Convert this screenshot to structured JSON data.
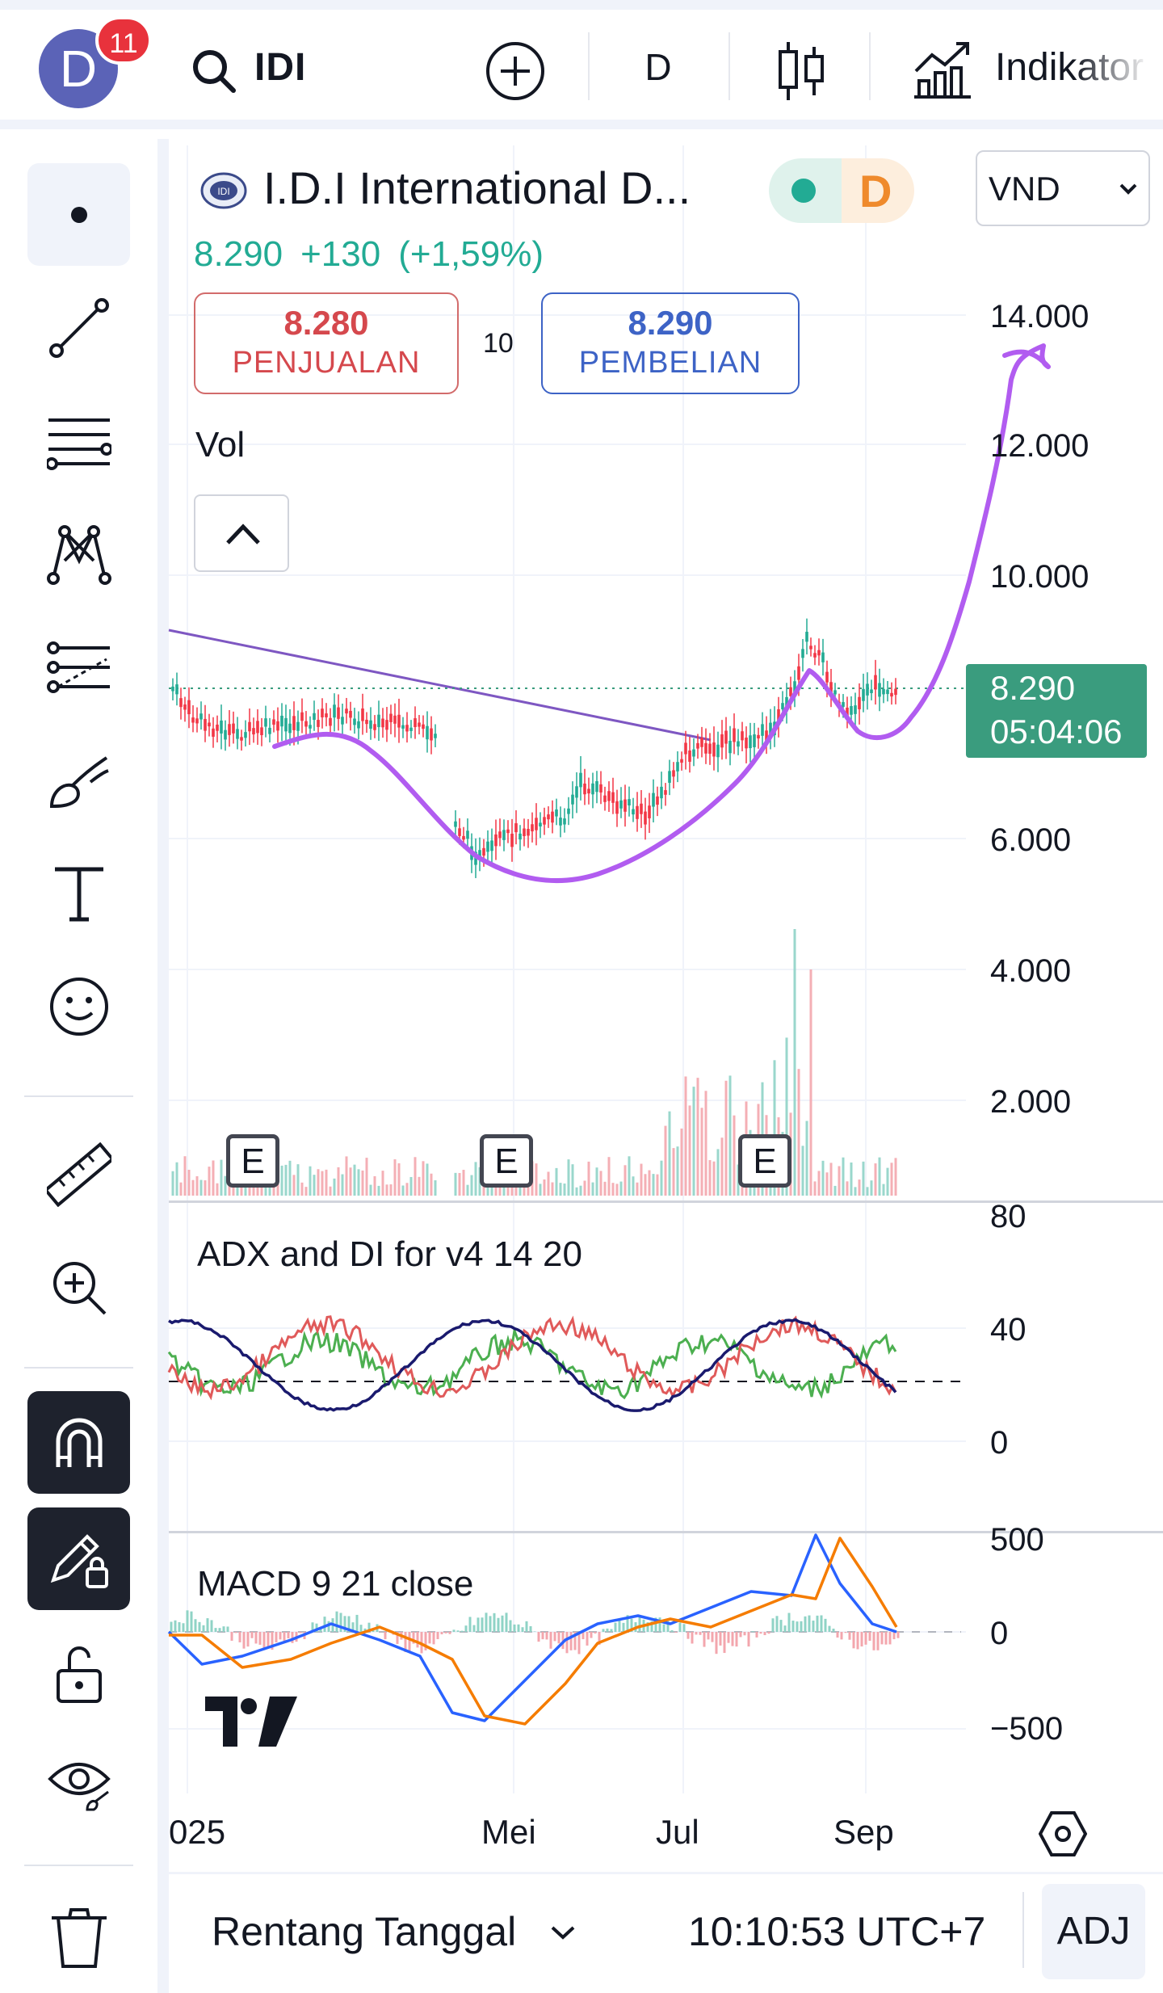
{
  "header": {
    "avatar_letter": "D",
    "notification_count": "11",
    "symbol": "IDI",
    "interval": "D",
    "indicators_label": "Indikator"
  },
  "legend": {
    "title": "I.D.I International D...",
    "status_letter": "D",
    "currency": "VND",
    "last_price": "8.290",
    "change": "+130",
    "change_pct": "(+1,59%)",
    "sell_price": "8.280",
    "sell_label": "PENJUALAN",
    "spread": "10",
    "buy_price": "8.290",
    "buy_label": "PEMBELIAN",
    "vol_label": "Vol"
  },
  "price_axis": [
    "14.000",
    "12.000",
    "10.000",
    "6.000",
    "4.000",
    "2.000"
  ],
  "last_price_tag": {
    "price": "8.290",
    "countdown": "05:04:06"
  },
  "earnings_badge": "E",
  "adx": {
    "title": "ADX and DI for v4 14 20",
    "axis": [
      "80",
      "40",
      "0"
    ]
  },
  "macd": {
    "title": "MACD 9 21 close",
    "axis": [
      "500",
      "0",
      "−500"
    ]
  },
  "time_axis": [
    "025",
    "Mei",
    "Jul",
    "Sep"
  ],
  "bottom": {
    "range_label": "Rentang Tanggal",
    "clock": "10:10:53 UTC+7",
    "adj": "ADJ"
  },
  "colors": {
    "up": "#22ab94",
    "down": "#f23645",
    "drawing": "#b15cf0",
    "trendline": "#7e57c2",
    "adx": "#1a1a6e",
    "di_plus": "#4caf50",
    "di_minus": "#e05a5a",
    "macd": "#2962ff",
    "signal": "#f57c00",
    "price_tag": "#3a9c7e"
  },
  "icons": {
    "toolbar": [
      "cursor-dot-icon",
      "trend-line-icon",
      "fib-retracement-icon",
      "pattern-icon",
      "projection-icon",
      "brush-icon",
      "text-icon",
      "emoji-icon",
      "ruler-icon",
      "zoom-in-icon",
      "magnet-icon",
      "lock-drawing-icon",
      "unlock-icon",
      "eye-icon",
      "trash-icon"
    ]
  }
}
